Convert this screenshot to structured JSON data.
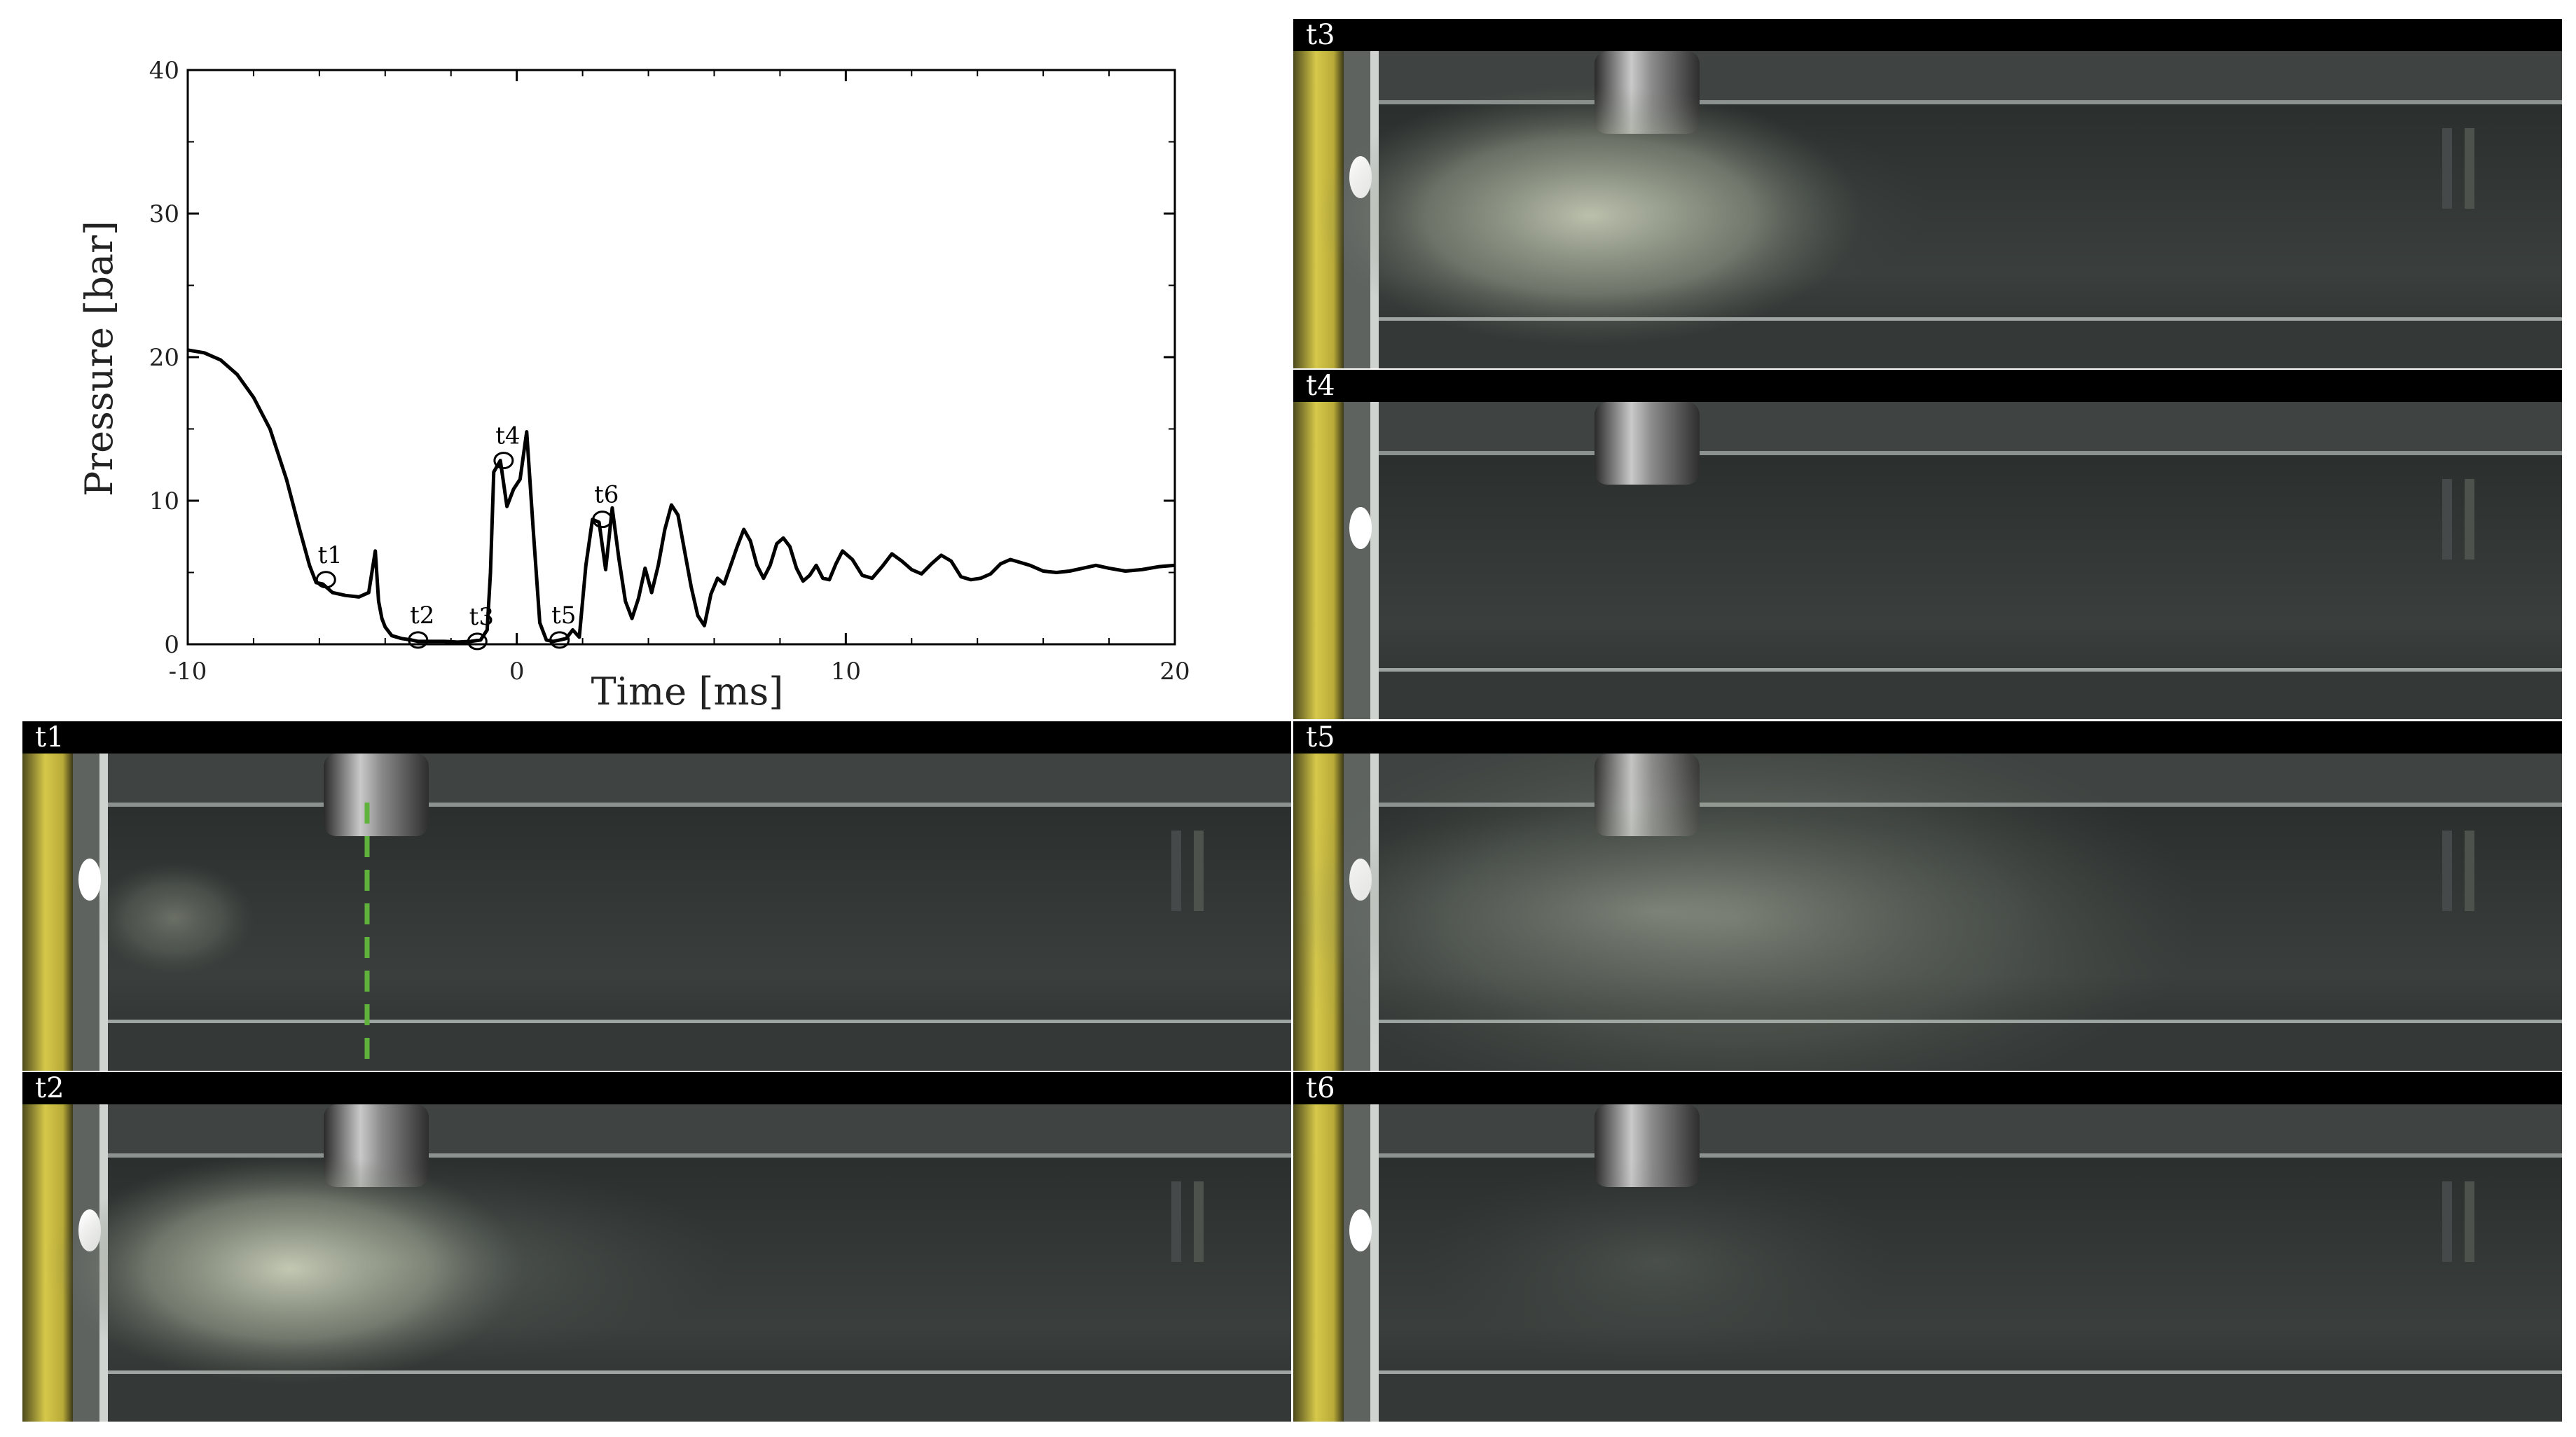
{
  "chart_data": {
    "type": "line",
    "xlabel": "Time [ms]",
    "ylabel": "Pressure [bar]",
    "xlim": [
      -10,
      20
    ],
    "ylim": [
      0,
      40
    ],
    "xticks": [
      -10,
      0,
      10,
      20
    ],
    "xtick_labels": [
      "-10",
      "0",
      "10",
      "20"
    ],
    "yticks": [
      0,
      10,
      20,
      30,
      40
    ],
    "ytick_labels": [
      "0",
      "10",
      "20",
      "30",
      "40"
    ],
    "grid": false,
    "series": [
      {
        "color": "#000000",
        "x": [
          -10,
          -9.5,
          -9,
          -8.5,
          -8,
          -7.5,
          -7,
          -6.6,
          -6.3,
          -6.1,
          -5.9,
          -5.6,
          -5.2,
          -4.8,
          -4.5,
          -4.3,
          -4.2,
          -4.1,
          -4.0,
          -3.8,
          -3.5,
          -3.2,
          -3.0,
          -2.6,
          -2.2,
          -1.8,
          -1.4,
          -1.1,
          -0.9,
          -0.8,
          -0.7,
          -0.5,
          -0.3,
          -0.1,
          0.1,
          0.3,
          0.5,
          0.7,
          0.9,
          1.1,
          1.3,
          1.5,
          1.7,
          1.9,
          2.1,
          2.3,
          2.5,
          2.7,
          2.9,
          3.1,
          3.3,
          3.5,
          3.7,
          3.9,
          4.1,
          4.3,
          4.5,
          4.7,
          4.9,
          5.1,
          5.3,
          5.5,
          5.7,
          5.9,
          6.1,
          6.3,
          6.5,
          6.7,
          6.9,
          7.1,
          7.3,
          7.5,
          7.7,
          7.9,
          8.1,
          8.3,
          8.5,
          8.7,
          8.9,
          9.1,
          9.3,
          9.5,
          9.7,
          9.9,
          10.2,
          10.5,
          10.8,
          11.1,
          11.4,
          11.7,
          12.0,
          12.3,
          12.6,
          12.9,
          13.2,
          13.5,
          13.8,
          14.1,
          14.4,
          14.7,
          15.0,
          15.3,
          15.6,
          16.0,
          16.4,
          16.8,
          17.2,
          17.6,
          18.0,
          18.5,
          19.0,
          19.5,
          20.0
        ],
        "y": [
          20.5,
          20.3,
          19.8,
          18.8,
          17.2,
          15.0,
          11.5,
          8.0,
          5.5,
          4.3,
          4.2,
          3.6,
          3.4,
          3.3,
          3.6,
          6.5,
          3.0,
          1.8,
          1.2,
          0.6,
          0.4,
          0.3,
          0.2,
          0.2,
          0.2,
          0.15,
          0.2,
          0.3,
          1.0,
          5.0,
          12.0,
          12.8,
          9.6,
          10.8,
          11.5,
          14.8,
          8.0,
          1.5,
          0.3,
          0.2,
          0.3,
          0.4,
          1.0,
          0.5,
          5.5,
          8.7,
          8.5,
          5.2,
          9.5,
          6.0,
          3.0,
          1.8,
          3.2,
          5.3,
          3.6,
          5.5,
          8.0,
          9.7,
          9.0,
          6.5,
          4.0,
          2.0,
          1.3,
          3.5,
          4.6,
          4.2,
          5.5,
          6.8,
          8.0,
          7.2,
          5.5,
          4.6,
          5.5,
          7.0,
          7.4,
          6.8,
          5.3,
          4.4,
          4.8,
          5.5,
          4.6,
          4.5,
          5.6,
          6.5,
          5.9,
          4.8,
          4.6,
          5.4,
          6.3,
          5.8,
          5.2,
          4.9,
          5.6,
          6.2,
          5.8,
          4.7,
          4.5,
          4.6,
          4.9,
          5.6,
          5.9,
          5.7,
          5.5,
          5.1,
          5.0,
          5.1,
          5.3,
          5.5,
          5.3,
          5.1,
          5.2,
          5.4,
          5.5
        ]
      }
    ],
    "annotations": [
      {
        "label": "t1",
        "x": -5.8,
        "y": 4.5
      },
      {
        "label": "t2",
        "x": -3.0,
        "y": 0.3
      },
      {
        "label": "t3",
        "x": -1.2,
        "y": 0.2
      },
      {
        "label": "t4",
        "x": -0.4,
        "y": 12.8
      },
      {
        "label": "t5",
        "x": 1.3,
        "y": 0.3
      },
      {
        "label": "t6",
        "x": 2.6,
        "y": 8.7
      }
    ]
  },
  "frames": [
    {
      "id": "t3",
      "label": "t3",
      "cloud": 0.85,
      "cloud_extent": 0.3,
      "mist": 0.15
    },
    {
      "id": "t4",
      "label": "t4",
      "cloud": 0.0,
      "cloud_extent": 0.0,
      "mist": 0.0
    },
    {
      "id": "t1",
      "label": "t1",
      "cloud": 0.35,
      "cloud_extent": 0.05,
      "mist": 0.0
    },
    {
      "id": "t5",
      "label": "t5",
      "cloud": 0.3,
      "cloud_extent": 0.55,
      "mist": 0.45
    },
    {
      "id": "t2",
      "label": "t2",
      "cloud": 0.9,
      "cloud_extent": 0.25,
      "mist": 0.35
    },
    {
      "id": "t6",
      "label": "t6",
      "cloud": 0.0,
      "cloud_extent": 0.0,
      "mist": 0.05
    }
  ],
  "marker_color": "#5fb33c"
}
